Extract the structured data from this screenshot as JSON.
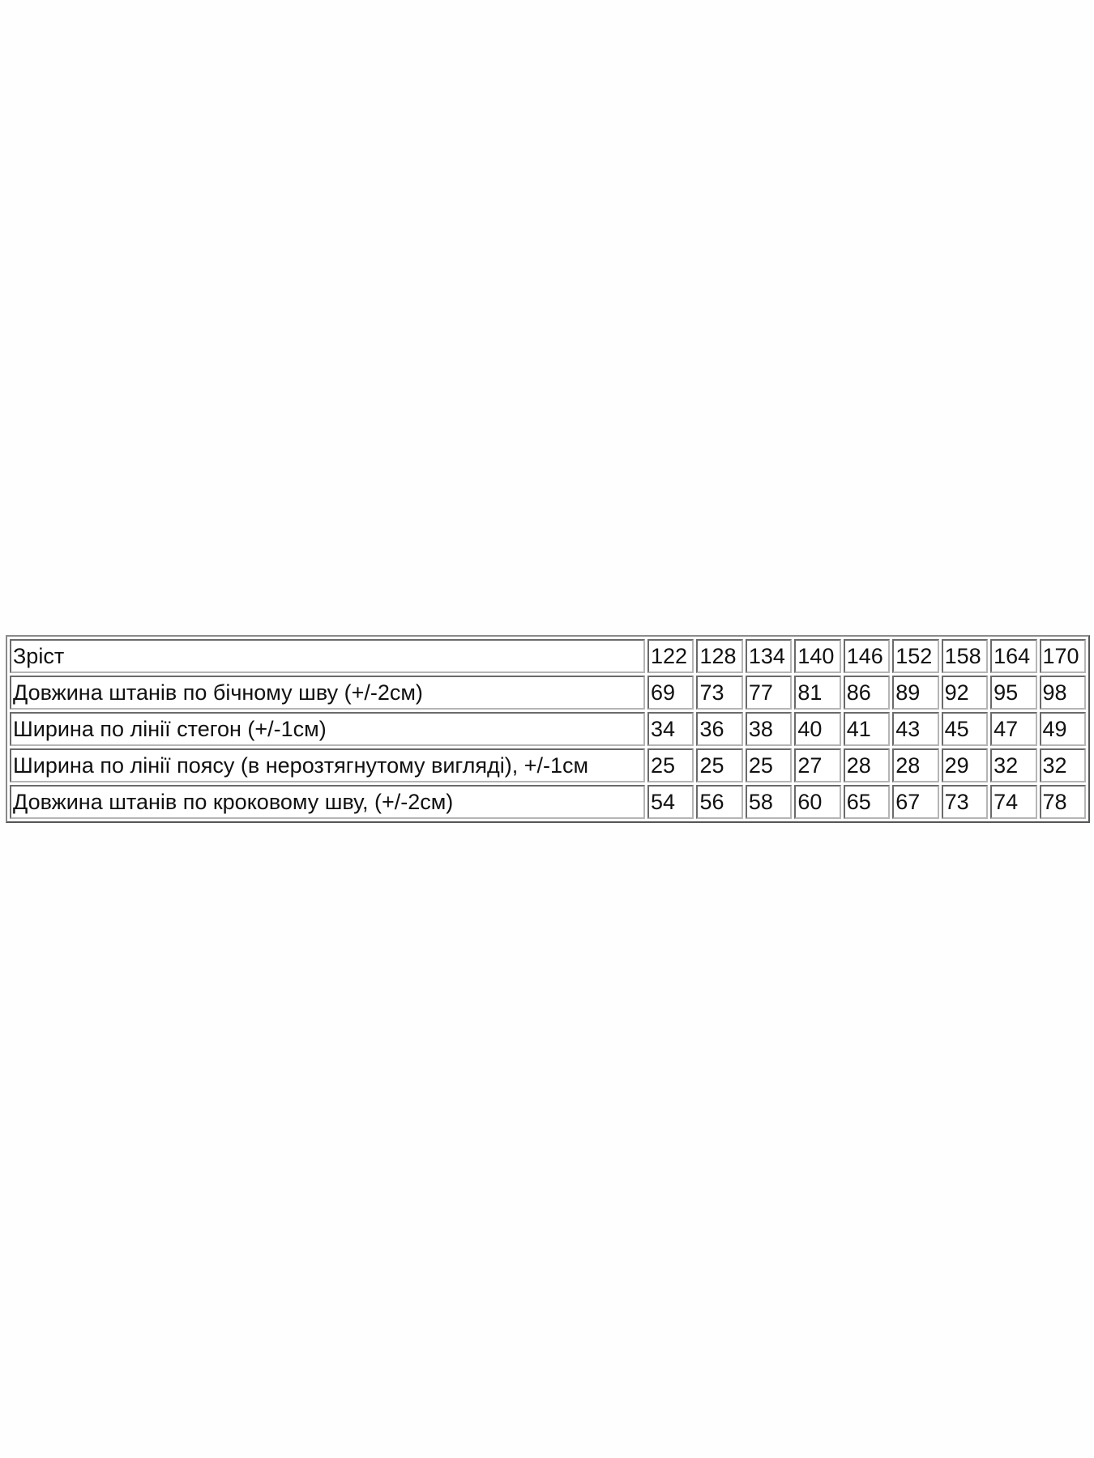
{
  "table": {
    "header": {
      "label": "Зріст",
      "sizes": [
        "122",
        "128",
        "134",
        "140",
        "146",
        "152",
        "158",
        "164",
        "170"
      ]
    },
    "rows": [
      {
        "label": "Довжина штанів по бічному шву (+/-2см)",
        "values": [
          "69",
          "73",
          "77",
          "81",
          "86",
          "89",
          "92",
          "95",
          "98"
        ]
      },
      {
        "label": "Ширина по лінії стегон (+/-1см)",
        "values": [
          "34",
          "36",
          "38",
          "40",
          "41",
          "43",
          "45",
          "47",
          "49"
        ]
      },
      {
        "label": "Ширина по лінії поясу (в нерозтягнутому вигляді), +/-1см",
        "values": [
          "25",
          "25",
          "25",
          "27",
          "28",
          "28",
          "29",
          "32",
          "32"
        ]
      },
      {
        "label": "Довжина штанів по кроковому шву, (+/-2см)",
        "values": [
          "54",
          "56",
          "58",
          "60",
          "65",
          "67",
          "73",
          "74",
          "78"
        ]
      }
    ]
  }
}
